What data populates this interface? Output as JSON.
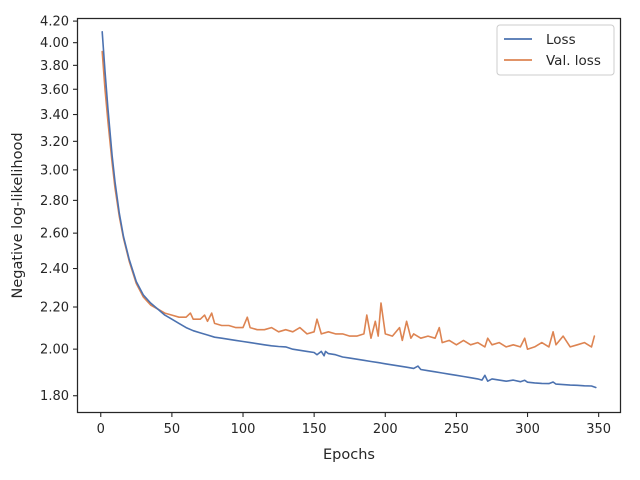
{
  "chart_data": {
    "type": "line",
    "title": "",
    "xlabel": "Epochs",
    "ylabel": "Negative log-likelihood",
    "y_scale": "log",
    "xlim": [
      -16,
      365
    ],
    "ylim": [
      1.735,
      4.22
    ],
    "x_ticks": [
      0,
      50,
      100,
      150,
      200,
      250,
      300,
      350
    ],
    "x_tick_labels": [
      "0",
      "50",
      "100",
      "150",
      "200",
      "250",
      "300",
      "350"
    ],
    "y_ticks": [
      1.8,
      2.0,
      2.2,
      2.4,
      2.6,
      2.8,
      3.0,
      3.2,
      3.4,
      3.6,
      3.8,
      4.0,
      4.2
    ],
    "y_tick_labels": [
      "1.80",
      "2.00",
      "2.20",
      "2.40",
      "2.60",
      "2.80",
      "3.00",
      "3.20",
      "3.40",
      "3.60",
      "3.80",
      "4.00",
      "4.20"
    ],
    "grid": false,
    "legend": {
      "position": "top-right"
    },
    "series": [
      {
        "name": "Loss",
        "color": "#4c72b0",
        "x": [
          1,
          3,
          5,
          8,
          10,
          13,
          16,
          20,
          25,
          30,
          35,
          40,
          45,
          50,
          55,
          60,
          65,
          70,
          75,
          80,
          85,
          90,
          95,
          100,
          105,
          110,
          115,
          120,
          125,
          130,
          135,
          140,
          145,
          150,
          152,
          155,
          157,
          158,
          160,
          165,
          170,
          175,
          180,
          185,
          190,
          195,
          200,
          205,
          210,
          215,
          220,
          223,
          225,
          230,
          235,
          240,
          245,
          250,
          255,
          260,
          265,
          268,
          270,
          272,
          275,
          280,
          285,
          290,
          295,
          298,
          300,
          305,
          310,
          315,
          318,
          320,
          325,
          330,
          335,
          340,
          345,
          348
        ],
        "y": [
          4.1,
          3.75,
          3.45,
          3.1,
          2.92,
          2.72,
          2.58,
          2.45,
          2.33,
          2.26,
          2.22,
          2.19,
          2.16,
          2.14,
          2.12,
          2.1,
          2.085,
          2.075,
          2.065,
          2.055,
          2.05,
          2.045,
          2.04,
          2.035,
          2.03,
          2.025,
          2.02,
          2.015,
          2.012,
          2.01,
          2.0,
          1.995,
          1.99,
          1.985,
          1.975,
          1.99,
          1.97,
          1.99,
          1.98,
          1.975,
          1.965,
          1.96,
          1.955,
          1.95,
          1.945,
          1.94,
          1.935,
          1.93,
          1.925,
          1.92,
          1.915,
          1.925,
          1.91,
          1.905,
          1.9,
          1.895,
          1.89,
          1.885,
          1.88,
          1.875,
          1.87,
          1.865,
          1.885,
          1.86,
          1.87,
          1.865,
          1.86,
          1.865,
          1.858,
          1.864,
          1.856,
          1.853,
          1.851,
          1.85,
          1.857,
          1.848,
          1.846,
          1.844,
          1.843,
          1.841,
          1.84,
          1.834
        ]
      },
      {
        "name": "Val. loss",
        "color": "#dd8452",
        "x": [
          1,
          3,
          5,
          8,
          10,
          13,
          16,
          20,
          25,
          30,
          35,
          40,
          45,
          50,
          55,
          60,
          63,
          65,
          70,
          73,
          75,
          78,
          80,
          85,
          90,
          95,
          100,
          103,
          105,
          110,
          115,
          120,
          125,
          130,
          135,
          140,
          145,
          150,
          152,
          155,
          160,
          165,
          170,
          175,
          180,
          185,
          187,
          190,
          193,
          195,
          197,
          200,
          205,
          210,
          212,
          215,
          218,
          220,
          225,
          230,
          235,
          238,
          240,
          245,
          250,
          255,
          260,
          265,
          270,
          272,
          275,
          280,
          285,
          290,
          295,
          298,
          300,
          305,
          310,
          315,
          318,
          320,
          325,
          330,
          335,
          340,
          345,
          347
        ],
        "y": [
          3.92,
          3.6,
          3.35,
          3.05,
          2.88,
          2.7,
          2.57,
          2.44,
          2.32,
          2.25,
          2.21,
          2.19,
          2.17,
          2.16,
          2.15,
          2.15,
          2.17,
          2.14,
          2.14,
          2.16,
          2.13,
          2.17,
          2.12,
          2.11,
          2.11,
          2.1,
          2.1,
          2.15,
          2.1,
          2.09,
          2.09,
          2.1,
          2.08,
          2.09,
          2.08,
          2.1,
          2.07,
          2.08,
          2.14,
          2.07,
          2.08,
          2.07,
          2.07,
          2.06,
          2.06,
          2.07,
          2.16,
          2.05,
          2.13,
          2.06,
          2.22,
          2.07,
          2.06,
          2.1,
          2.04,
          2.13,
          2.05,
          2.07,
          2.05,
          2.06,
          2.05,
          2.1,
          2.03,
          2.04,
          2.02,
          2.04,
          2.02,
          2.03,
          2.01,
          2.05,
          2.02,
          2.03,
          2.01,
          2.02,
          2.01,
          2.05,
          2.0,
          2.01,
          2.03,
          2.01,
          2.08,
          2.02,
          2.06,
          2.01,
          2.02,
          2.03,
          2.01,
          2.06
        ]
      }
    ]
  }
}
